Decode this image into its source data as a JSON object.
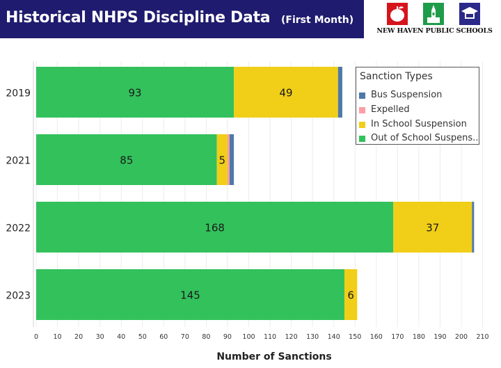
{
  "header": {
    "title": "Historical NHPS Discipline Data",
    "subtitle": "(First Month)",
    "logo_text": "NEW HAVEN PUBLIC SCHOOLS",
    "banner_color": "#1f1b6e"
  },
  "legend": {
    "title": "Sanction Types",
    "items": [
      {
        "label": "Bus Suspension",
        "color": "#4e79a7"
      },
      {
        "label": "Expelled",
        "color": "#ff9da7"
      },
      {
        "label": "In School Suspension",
        "color": "#f1ce18"
      },
      {
        "label": "Out of School Suspens..",
        "color": "#33c15c"
      }
    ]
  },
  "chart_data": {
    "type": "bar",
    "orientation": "horizontal",
    "stacked": true,
    "categories": [
      "2019",
      "2021",
      "2022",
      "2023"
    ],
    "series": [
      {
        "name": "Out of School Suspens..",
        "color": "#33c15c",
        "values": [
          93,
          85,
          168,
          145
        ],
        "labels": [
          "93",
          "85",
          "168",
          "145"
        ]
      },
      {
        "name": "In School Suspension",
        "color": "#f1ce18",
        "values": [
          49,
          5,
          37,
          6
        ],
        "labels": [
          "49",
          "5",
          "37",
          "6"
        ]
      },
      {
        "name": "Expelled",
        "color": "#ff9da7",
        "values": [
          0,
          1,
          0,
          0
        ],
        "labels": [
          "",
          "",
          "",
          ""
        ]
      },
      {
        "name": "Bus Suspension",
        "color": "#4e79a7",
        "values": [
          2,
          2,
          1,
          0
        ],
        "labels": [
          "",
          "",
          "",
          ""
        ]
      }
    ],
    "xlabel": "Number of Sanctions",
    "ylabel": "",
    "xlim": [
      0,
      210
    ],
    "xticks": [
      0,
      10,
      20,
      30,
      40,
      50,
      60,
      70,
      80,
      90,
      100,
      110,
      120,
      130,
      140,
      150,
      160,
      170,
      180,
      190,
      200,
      210
    ],
    "grid": true,
    "legend_position": "top-right"
  }
}
